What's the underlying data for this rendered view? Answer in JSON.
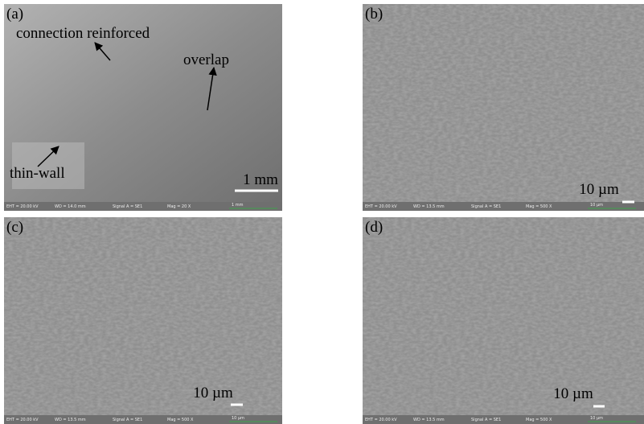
{
  "panels": [
    {
      "label": "(a)",
      "annotations": [
        "connection reinforced",
        "overlap",
        "thin-wall"
      ],
      "scale_bar": "1 mm",
      "info": {
        "eht": "EHT = 20.00 kV",
        "wd": "WD = 14.0 mm",
        "signal": "Signal A = SE1",
        "mag": "Mag =   20 X",
        "scale": "1 mm"
      }
    },
    {
      "label": "(b)",
      "annotations": [],
      "scale_bar": "10 µm",
      "info": {
        "eht": "EHT = 20.00 kV",
        "wd": "WD = 13.5 mm",
        "signal": "Signal A = SE1",
        "mag": "Mag =  500 X",
        "scale": "10 µm"
      }
    },
    {
      "label": "(c)",
      "annotations": [],
      "scale_bar": "10 µm",
      "info": {
        "eht": "EHT = 20.00 kV",
        "wd": "WD = 13.5 mm",
        "signal": "Signal A = SE1",
        "mag": "Mag =  500 X",
        "scale": "10 µm"
      }
    },
    {
      "label": "(d)",
      "annotations": [],
      "scale_bar": "10 µm",
      "info": {
        "eht": "EHT = 20.00 kV",
        "wd": "WD = 13.5 mm",
        "signal": "Signal A = SE1",
        "mag": "Mag =  500 X",
        "scale": "10 µm"
      }
    }
  ]
}
